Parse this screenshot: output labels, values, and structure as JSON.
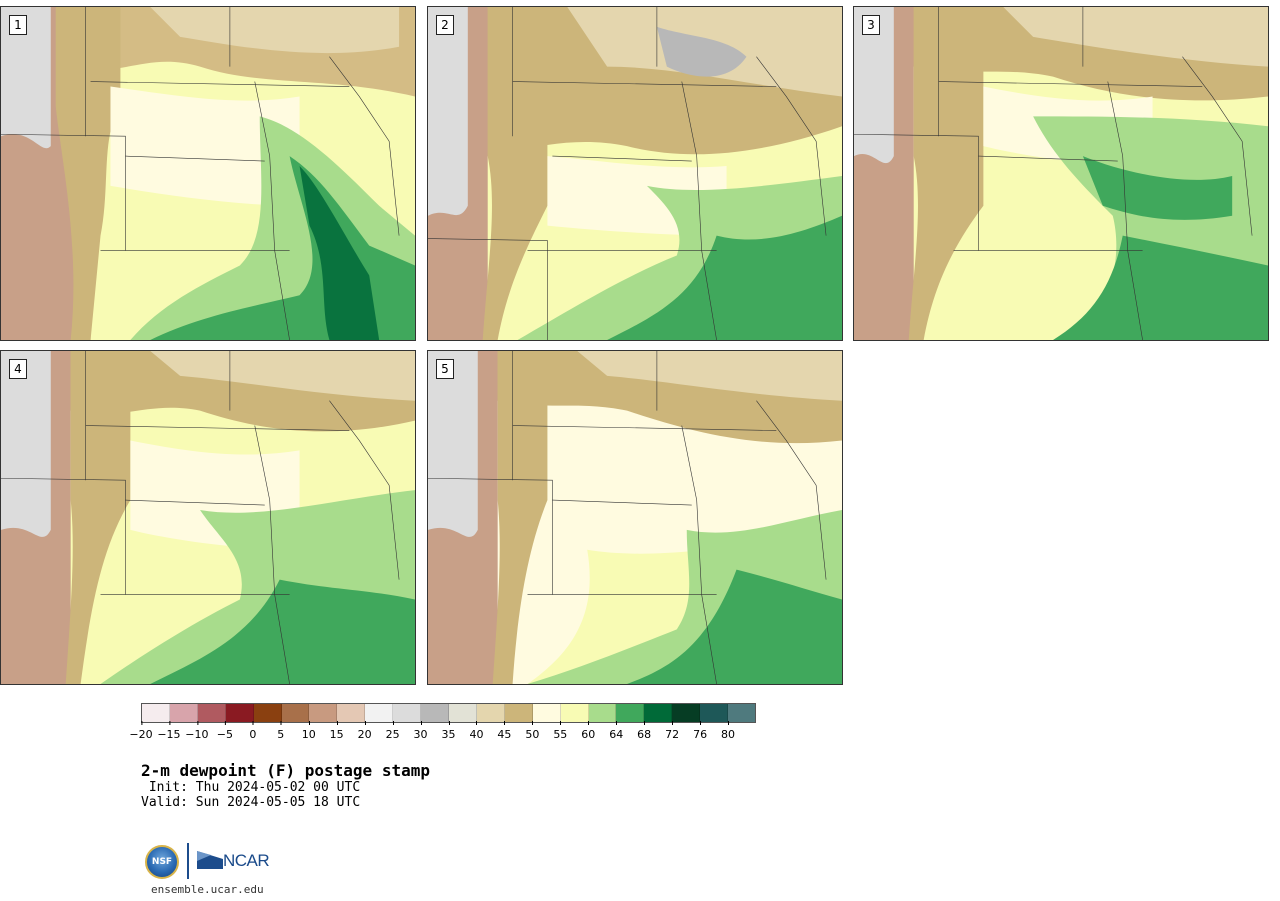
{
  "panels": [
    {
      "label": "1"
    },
    {
      "label": "2"
    },
    {
      "label": "3"
    },
    {
      "label": "4"
    },
    {
      "label": "5"
    }
  ],
  "colorbar": {
    "colors": [
      "#f5ecee",
      "#d8a4ab",
      "#b05a60",
      "#8a1a22",
      "#8a4010",
      "#a8704a",
      "#c89a80",
      "#e4c8b4",
      "#f2f2f2",
      "#dcdcdc",
      "#b8b8b8",
      "#e2e2d6",
      "#e4d6ae",
      "#ccb57a",
      "#fffbe0",
      "#f8fbb4",
      "#a8dc8c",
      "#40a85c",
      "#006a38",
      "#063d24",
      "#1e5858",
      "#4f7a7e"
    ],
    "ticks": [
      "−20",
      "−15",
      "−10",
      "−5",
      "0",
      "5",
      "10",
      "15",
      "20",
      "25",
      "30",
      "35",
      "40",
      "45",
      "50",
      "55",
      "60",
      "64",
      "68",
      "72",
      "76",
      "80"
    ]
  },
  "title": "2-m dewpoint (F) postage stamp",
  "init": " Init: Thu 2024-05-02 00 UTC",
  "valid": "Valid: Sun 2024-05-05 18 UTC",
  "logo": {
    "nsf": "NSF",
    "ncar": "NCAR"
  },
  "site": "ensemble.ucar.edu"
}
